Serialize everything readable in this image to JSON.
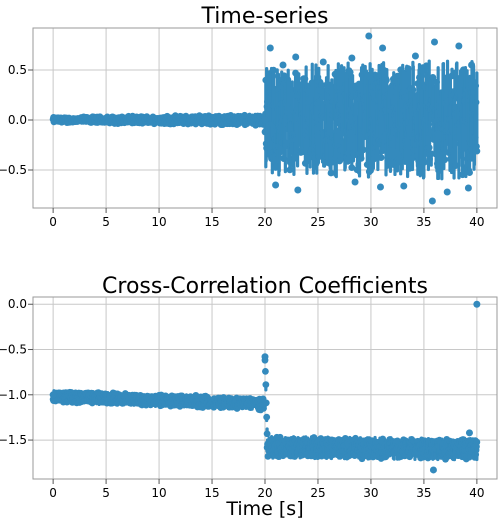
{
  "chart_data": [
    {
      "type": "scatter",
      "title": "Time-series",
      "xlabel": "",
      "ylabel": "",
      "xlim": [
        -1.9,
        41.9
      ],
      "ylim": [
        -0.88,
        0.92
      ],
      "xticks": [
        0,
        5,
        10,
        15,
        20,
        25,
        30,
        35,
        40
      ],
      "yticks": [
        -0.5,
        0.0,
        0.5
      ],
      "xtick_labels": [
        "0",
        "5",
        "10",
        "15",
        "20",
        "25",
        "30",
        "35",
        "40"
      ],
      "ytick_labels": [
        "−0.5",
        "0.0",
        "0.5"
      ],
      "grid": true,
      "color": "#348abd",
      "series": [
        {
          "segments": [
            {
              "x": [
                0,
                20
              ],
              "center": 0.0,
              "amplitude_start": 0.03,
              "amplitude_end": 0.06
            },
            {
              "x": [
                20,
                40
              ],
              "center": 0.0,
              "amplitude_start": 0.55,
              "amplitude_end": 0.6
            }
          ],
          "points": [
            {
              "x": 20.0,
              "y": 0.0
            },
            {
              "x": 20.5,
              "y": 0.72
            },
            {
              "x": 21.7,
              "y": 0.55
            },
            {
              "x": 22.9,
              "y": 0.63
            },
            {
              "x": 25.5,
              "y": 0.58
            },
            {
              "x": 28.2,
              "y": 0.62
            },
            {
              "x": 29.8,
              "y": 0.84
            },
            {
              "x": 31.1,
              "y": 0.72
            },
            {
              "x": 34.2,
              "y": 0.64
            },
            {
              "x": 36.0,
              "y": 0.78
            },
            {
              "x": 38.3,
              "y": 0.74
            },
            {
              "x": 39.5,
              "y": 0.55
            },
            {
              "x": 21.0,
              "y": -0.65
            },
            {
              "x": 23.1,
              "y": -0.7
            },
            {
              "x": 28.5,
              "y": -0.62
            },
            {
              "x": 30.9,
              "y": -0.67
            },
            {
              "x": 33.1,
              "y": -0.66
            },
            {
              "x": 35.8,
              "y": -0.81
            },
            {
              "x": 37.2,
              "y": -0.72
            },
            {
              "x": 39.2,
              "y": -0.68
            }
          ]
        }
      ]
    },
    {
      "type": "scatter",
      "title": "Cross-Correlation Coefficients",
      "xlabel": "Time [s]",
      "ylabel": "",
      "xlim": [
        -1.9,
        41.9
      ],
      "ylim": [
        -1.93,
        0.08
      ],
      "xticks": [
        0,
        5,
        10,
        15,
        20,
        25,
        30,
        35,
        40
      ],
      "yticks": [
        -1.5,
        -1.0,
        -0.5,
        0.0
      ],
      "xtick_labels": [
        "0",
        "5",
        "10",
        "15",
        "20",
        "25",
        "30",
        "35",
        "40"
      ],
      "ytick_labels": [
        "−1.5",
        "−1.0",
        "−0.5",
        "0.0"
      ],
      "grid": true,
      "color": "#348abd",
      "series": [
        {
          "segments": [
            {
              "x": [
                0,
                19.9
              ],
              "center_start": -1.02,
              "center_end": -1.1,
              "amplitude": 0.07
            },
            {
              "x": [
                20.0,
                20.2
              ],
              "center_start": -0.6,
              "center_end": -1.4,
              "amplitude": 0.05
            },
            {
              "x": [
                20.2,
                40
              ],
              "center_start": -1.58,
              "center_end": -1.6,
              "amplitude": 0.12
            }
          ],
          "points": [
            {
              "x": 40.0,
              "y": 0.0
            },
            {
              "x": 0.0,
              "y": -1.0
            },
            {
              "x": 20.0,
              "y": -0.58
            },
            {
              "x": 35.9,
              "y": -1.83
            },
            {
              "x": 39.3,
              "y": -1.42
            }
          ]
        }
      ]
    }
  ]
}
